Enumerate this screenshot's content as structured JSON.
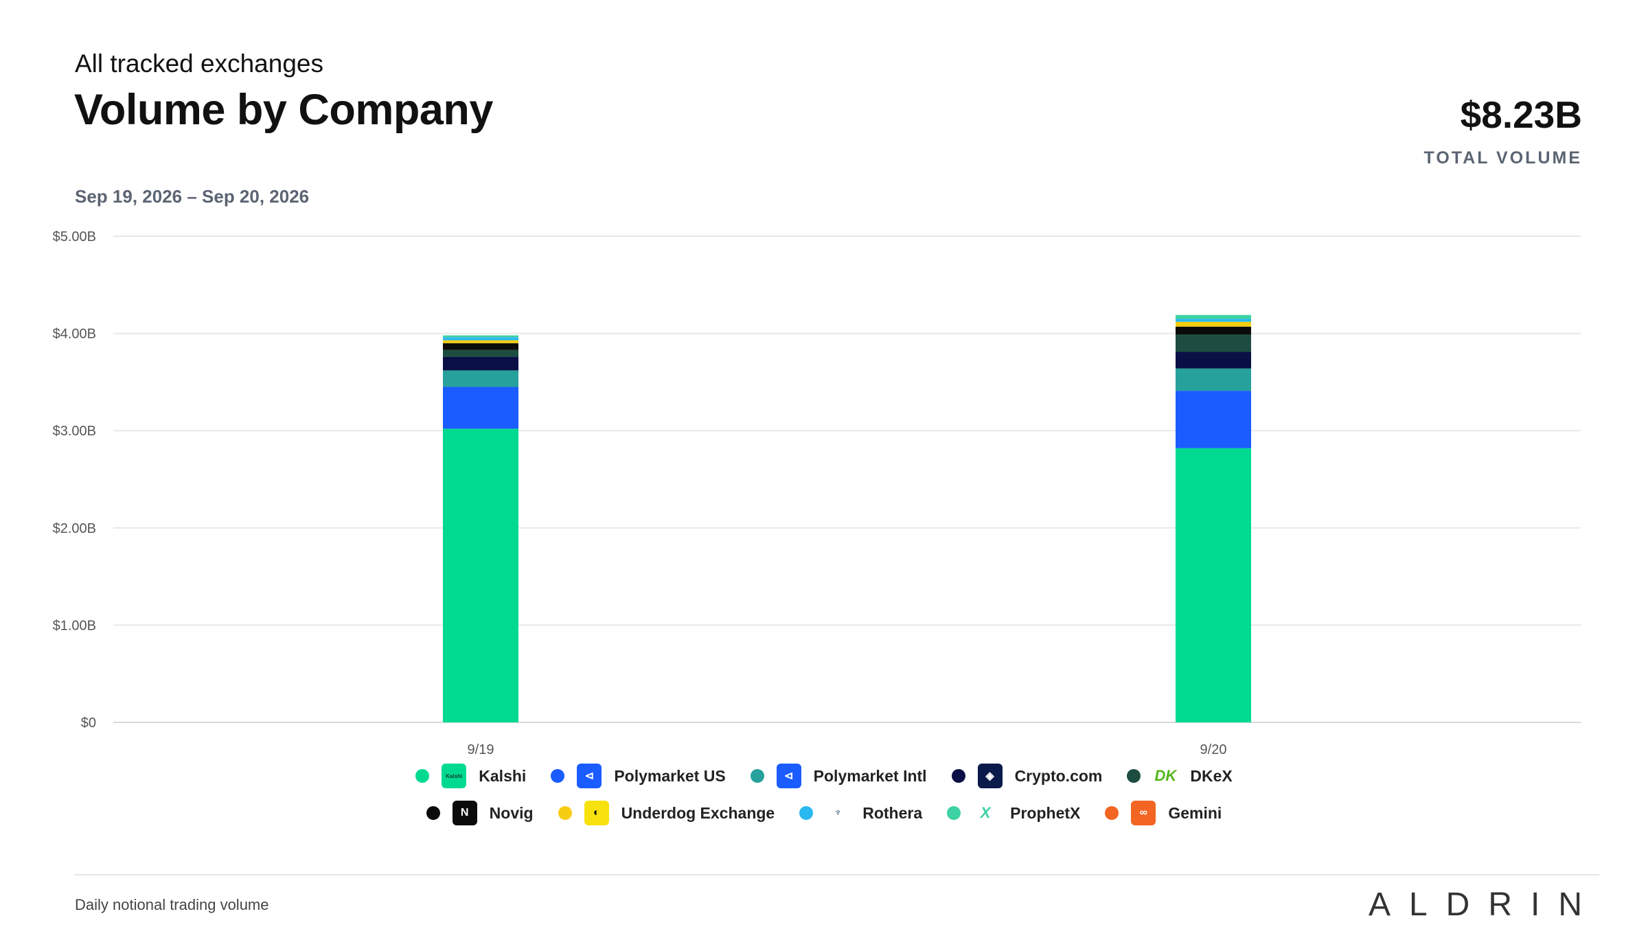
{
  "header": {
    "subtitle": "All tracked exchanges",
    "title": "Volume by Company",
    "total_value": "$8.23B",
    "total_label": "TOTAL VOLUME",
    "date_range": "Sep 19, 2026 – Sep 20, 2026"
  },
  "chart_data": {
    "type": "bar",
    "stacked": true,
    "categories": [
      "9/19",
      "9/20"
    ],
    "ylim": [
      0,
      5000000000
    ],
    "y_ticks": [
      "$0",
      "$1.00B",
      "$2.00B",
      "$3.00B",
      "$4.00B",
      "$5.00B"
    ],
    "grid": true,
    "legend_position": "bottom",
    "series": [
      {
        "name": "Kalshi",
        "color": "#00da91",
        "values": [
          3.02,
          2.82
        ]
      },
      {
        "name": "Polymarket US",
        "color": "#1a5cff",
        "values": [
          0.43,
          0.59
        ]
      },
      {
        "name": "Polymarket Intl",
        "color": "#26a19c",
        "values": [
          0.17,
          0.23
        ]
      },
      {
        "name": "Crypto.com",
        "color": "#0a0f45",
        "values": [
          0.14,
          0.17
        ]
      },
      {
        "name": "DKeX",
        "color": "#1d4d40",
        "values": [
          0.07,
          0.18
        ]
      },
      {
        "name": "Novig",
        "color": "#0b0b0b",
        "values": [
          0.07,
          0.08
        ]
      },
      {
        "name": "Underdog Exchange",
        "color": "#f7cd12",
        "values": [
          0.03,
          0.05
        ]
      },
      {
        "name": "Rothera",
        "color": "#29b8f0",
        "values": [
          0.03,
          0.03
        ]
      },
      {
        "name": "ProphetX",
        "color": "#3dd1a3",
        "values": [
          0.02,
          0.04
        ]
      },
      {
        "name": "Gemini",
        "color": "#f26522",
        "values": [
          0.0,
          0.0
        ]
      }
    ]
  },
  "legend": [
    {
      "label": "Kalshi",
      "dot": "#00da91",
      "logo_bg": "#00da91",
      "logo_text": "Kalshi",
      "logo_color": "#0b3d2c",
      "icon": "kalshi-logo-icon"
    },
    {
      "label": "Polymarket US",
      "dot": "#1a5cff",
      "logo_bg": "#1a5cff",
      "logo_text": "⊲",
      "logo_color": "#ffffff",
      "icon": "polymarket-logo-icon"
    },
    {
      "label": "Polymarket Intl",
      "dot": "#26a19c",
      "logo_bg": "#1a5cff",
      "logo_text": "⊲",
      "logo_color": "#ffffff",
      "icon": "polymarket-intl-logo-icon"
    },
    {
      "label": "Crypto.com",
      "dot": "#0a0f45",
      "logo_bg": "#0a1a4a",
      "logo_text": "◈",
      "logo_color": "#ffffff",
      "icon": "crypto-com-logo-icon"
    },
    {
      "label": "DKeX",
      "dot": "#1d4d40",
      "logo_bg": "#ffffff",
      "logo_text": "DK",
      "logo_color": "#53b61a",
      "icon": "dkex-logo-icon"
    },
    {
      "label": "Novig",
      "dot": "#0b0b0b",
      "logo_bg": "#0b0b0b",
      "logo_text": "N",
      "logo_color": "#ffffff",
      "icon": "novig-logo-icon"
    },
    {
      "label": "Underdog Exchange",
      "dot": "#f7cd12",
      "logo_bg": "#f7e20f",
      "logo_text": "◐",
      "logo_color": "#111111",
      "icon": "underdog-logo-icon"
    },
    {
      "label": "Rothera",
      "dot": "#29b8f0",
      "logo_bg": "#ffffff",
      "logo_text": "♆",
      "logo_color": "#1d3b5a",
      "icon": "rothera-logo-icon"
    },
    {
      "label": "ProphetX",
      "dot": "#3dd1a3",
      "logo_bg": "#ffffff",
      "logo_text": "X",
      "logo_color": "#3dd1a3",
      "icon": "prophetx-logo-icon"
    },
    {
      "label": "Gemini",
      "dot": "#f26522",
      "logo_bg": "#f26522",
      "logo_text": "∞",
      "logo_color": "#ffffff",
      "icon": "gemini-logo-icon"
    }
  ],
  "footer": {
    "note": "Daily notional trading volume",
    "brand": "ALDRIN"
  }
}
